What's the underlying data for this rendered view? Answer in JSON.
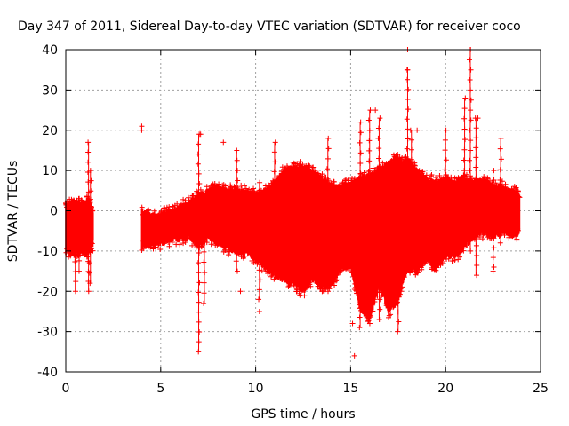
{
  "chart_data": {
    "type": "scatter",
    "title": "Day 347 of 2011, Sidereal Day-to-day VTEC variation (SDTVAR) for receiver coco",
    "xlabel": "GPS time / hours",
    "ylabel": "SDTVAR / TECUs",
    "xlim": [
      0,
      25
    ],
    "ylim": [
      -40,
      40
    ],
    "x_ticks": [
      0,
      5,
      10,
      15,
      20,
      25
    ],
    "x_tick_labels": [
      "0",
      "5",
      "10",
      "15",
      "20",
      "25"
    ],
    "y_ticks": [
      -40,
      -30,
      -20,
      -10,
      0,
      10,
      20,
      30,
      40
    ],
    "y_tick_labels": [
      "-40",
      "-30",
      "-20",
      "-10",
      "0",
      "10",
      "20",
      "30",
      "40"
    ],
    "grid": true,
    "marker": "+",
    "color": "#ff0000",
    "series": [
      {
        "name": "SDTVAR",
        "envelope": [
          {
            "x": 0.0,
            "lo": -10,
            "hi": 2
          },
          {
            "x": 0.3,
            "lo": -10,
            "hi": 2
          },
          {
            "x": 0.6,
            "lo": -11,
            "hi": 2
          },
          {
            "x": 0.9,
            "lo": -10,
            "hi": 2
          },
          {
            "x": 1.2,
            "lo": -10,
            "hi": 3
          },
          {
            "x": 1.45,
            "lo": -8,
            "hi": 0
          },
          {
            "x": 4.0,
            "lo": -9,
            "hi": 0
          },
          {
            "x": 4.5,
            "lo": -8,
            "hi": -1
          },
          {
            "x": 5.0,
            "lo": -8,
            "hi": -1
          },
          {
            "x": 5.5,
            "lo": -7,
            "hi": 0
          },
          {
            "x": 6.0,
            "lo": -7,
            "hi": 1
          },
          {
            "x": 6.5,
            "lo": -6,
            "hi": 2
          },
          {
            "x": 7.0,
            "lo": -9,
            "hi": 4
          },
          {
            "x": 7.5,
            "lo": -6,
            "hi": 5
          },
          {
            "x": 8.0,
            "lo": -8,
            "hi": 6
          },
          {
            "x": 8.5,
            "lo": -9,
            "hi": 5
          },
          {
            "x": 9.0,
            "lo": -10,
            "hi": 5
          },
          {
            "x": 9.5,
            "lo": -10,
            "hi": 5
          },
          {
            "x": 10.0,
            "lo": -12,
            "hi": 4
          },
          {
            "x": 10.5,
            "lo": -14,
            "hi": 5
          },
          {
            "x": 11.0,
            "lo": -16,
            "hi": 7
          },
          {
            "x": 11.5,
            "lo": -17,
            "hi": 10
          },
          {
            "x": 12.0,
            "lo": -18,
            "hi": 11
          },
          {
            "x": 12.5,
            "lo": -20,
            "hi": 11
          },
          {
            "x": 13.0,
            "lo": -17,
            "hi": 10
          },
          {
            "x": 13.5,
            "lo": -19,
            "hi": 8
          },
          {
            "x": 14.0,
            "lo": -18,
            "hi": 6
          },
          {
            "x": 14.5,
            "lo": -14,
            "hi": 6
          },
          {
            "x": 15.0,
            "lo": -14,
            "hi": 7
          },
          {
            "x": 15.5,
            "lo": -24,
            "hi": 8
          },
          {
            "x": 16.0,
            "lo": -27,
            "hi": 9
          },
          {
            "x": 16.5,
            "lo": -18,
            "hi": 10
          },
          {
            "x": 17.0,
            "lo": -25,
            "hi": 12
          },
          {
            "x": 17.5,
            "lo": -22,
            "hi": 13
          },
          {
            "x": 18.0,
            "lo": -14,
            "hi": 12
          },
          {
            "x": 18.5,
            "lo": -15,
            "hi": 10
          },
          {
            "x": 19.0,
            "lo": -12,
            "hi": 8
          },
          {
            "x": 19.5,
            "lo": -14,
            "hi": 7
          },
          {
            "x": 20.0,
            "lo": -11,
            "hi": 8
          },
          {
            "x": 20.5,
            "lo": -11,
            "hi": 7
          },
          {
            "x": 21.0,
            "lo": -9,
            "hi": 8
          },
          {
            "x": 21.5,
            "lo": -6,
            "hi": 7
          },
          {
            "x": 22.0,
            "lo": -5,
            "hi": 8
          },
          {
            "x": 22.5,
            "lo": -6,
            "hi": 6
          },
          {
            "x": 23.0,
            "lo": -5,
            "hi": 6
          },
          {
            "x": 23.5,
            "lo": -6,
            "hi": 5
          },
          {
            "x": 23.9,
            "lo": -5,
            "hi": 4
          }
        ],
        "spikes": [
          {
            "x": 0.5,
            "lo": -20,
            "hi": 2
          },
          {
            "x": 0.7,
            "lo": -15,
            "hi": 3
          },
          {
            "x": 1.2,
            "lo": -20,
            "hi": 17
          },
          {
            "x": 1.3,
            "lo": -18,
            "hi": 10
          },
          {
            "x": 7.0,
            "lo": -35,
            "hi": 19
          },
          {
            "x": 7.3,
            "lo": -23,
            "hi": 0
          },
          {
            "x": 9.0,
            "lo": -15,
            "hi": 15
          },
          {
            "x": 10.2,
            "lo": -22,
            "hi": 7
          },
          {
            "x": 11.0,
            "lo": -17,
            "hi": 17
          },
          {
            "x": 13.8,
            "lo": -20,
            "hi": 18
          },
          {
            "x": 15.5,
            "lo": -29,
            "hi": 22
          },
          {
            "x": 16.0,
            "lo": -28,
            "hi": 25
          },
          {
            "x": 16.5,
            "lo": -27,
            "hi": 23
          },
          {
            "x": 17.5,
            "lo": -30,
            "hi": 14
          },
          {
            "x": 18.0,
            "lo": -14,
            "hi": 35
          },
          {
            "x": 18.2,
            "lo": -14,
            "hi": 20
          },
          {
            "x": 20.0,
            "lo": -12,
            "hi": 20
          },
          {
            "x": 21.0,
            "lo": -8,
            "hi": 28
          },
          {
            "x": 21.3,
            "lo": -10,
            "hi": 40
          },
          {
            "x": 21.6,
            "lo": -16,
            "hi": 23
          },
          {
            "x": 22.5,
            "lo": -14,
            "hi": 10
          },
          {
            "x": 22.9,
            "lo": -8,
            "hi": 18
          }
        ],
        "outliers": [
          {
            "x": 4.0,
            "y": 21
          },
          {
            "x": 4.0,
            "y": 20
          },
          {
            "x": 7.1,
            "y": 19
          },
          {
            "x": 8.3,
            "y": 17
          },
          {
            "x": 9.2,
            "y": -20
          },
          {
            "x": 10.2,
            "y": -25
          },
          {
            "x": 15.1,
            "y": -28
          },
          {
            "x": 15.2,
            "y": -36
          },
          {
            "x": 16.3,
            "y": 25
          },
          {
            "x": 17.3,
            "y": -20
          },
          {
            "x": 18.0,
            "y": 40
          },
          {
            "x": 18.0,
            "y": 35
          },
          {
            "x": 18.5,
            "y": 20
          },
          {
            "x": 21.3,
            "y": 40
          },
          {
            "x": 21.7,
            "y": 23
          },
          {
            "x": 22.5,
            "y": -15
          }
        ]
      }
    ]
  }
}
